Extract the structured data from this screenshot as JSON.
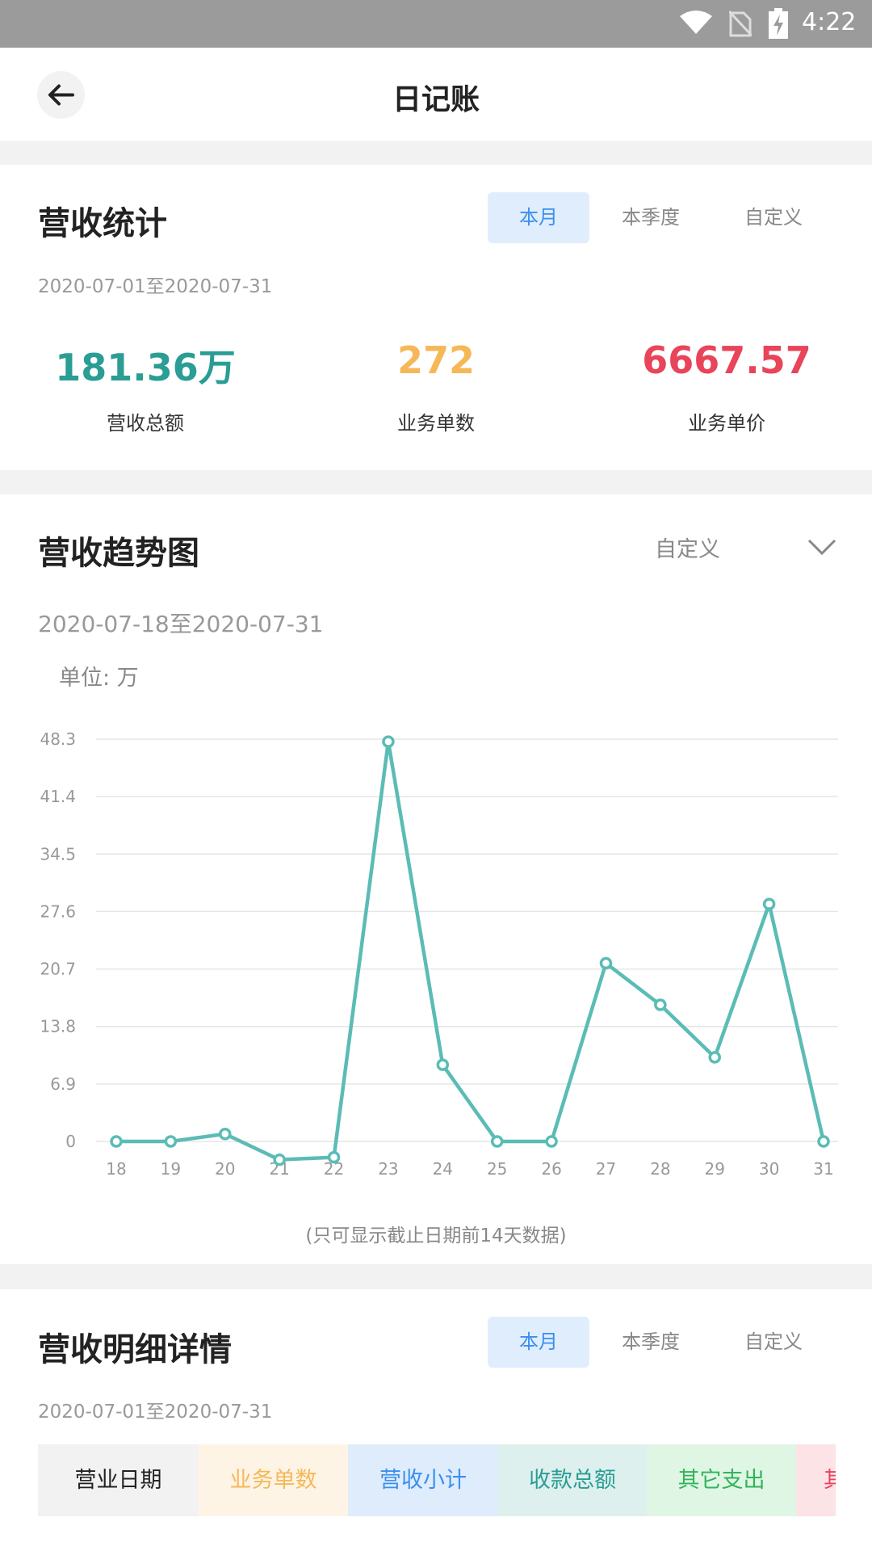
{
  "status_bar": {
    "time": "4:22",
    "icons": [
      "wifi-icon",
      "no-sim-icon",
      "battery-charging-icon"
    ]
  },
  "header": {
    "title": "日记账",
    "back_icon": "arrow-left-icon"
  },
  "revenue_stats": {
    "title": "营收统计",
    "tabs": [
      {
        "label": "本月",
        "active": true
      },
      {
        "label": "本季度",
        "active": false
      },
      {
        "label": "自定义",
        "active": false
      }
    ],
    "date_range": "2020-07-01至2020-07-31",
    "metrics": [
      {
        "value": "181.36万",
        "label": "营收总额",
        "color": "#2a9d94"
      },
      {
        "value": "272",
        "label": "业务单数",
        "color": "#f5b857"
      },
      {
        "value": "6667.57",
        "label": "业务单价",
        "color": "#e8445a"
      }
    ]
  },
  "trend": {
    "title": "营收趋势图",
    "dropdown_label": "自定义",
    "date_range": "2020-07-18至2020-07-31",
    "unit": "单位: 万",
    "note": "(只可显示截止日期前14天数据)"
  },
  "chart_data": {
    "type": "line",
    "categories": [
      "18",
      "19",
      "20",
      "21",
      "22",
      "23",
      "24",
      "25",
      "26",
      "27",
      "28",
      "29",
      "30",
      "31"
    ],
    "values": [
      0,
      0,
      0.9,
      -2.2,
      -1.9,
      48.0,
      9.2,
      0,
      0,
      21.4,
      16.4,
      10.1,
      28.5,
      0
    ],
    "y_ticks": [
      "0",
      "6.9",
      "13.8",
      "20.7",
      "27.6",
      "34.5",
      "41.4",
      "48.3"
    ],
    "ylim": [
      0,
      48.3
    ],
    "grid": true,
    "color": "#5bbcb6"
  },
  "details": {
    "title": "营收明细详情",
    "tabs": [
      {
        "label": "本月",
        "active": true
      },
      {
        "label": "本季度",
        "active": false
      },
      {
        "label": "自定义",
        "active": false
      }
    ],
    "date_range": "2020-07-01至2020-07-31",
    "columns": [
      {
        "label": "营业日期",
        "color": "#222222",
        "bg": "#f2f2f2"
      },
      {
        "label": "业务单数",
        "color": "#f5b857",
        "bg": "#fef4e6"
      },
      {
        "label": "营收小计",
        "color": "#3b8ff0",
        "bg": "#deecfc"
      },
      {
        "label": "收款总额",
        "color": "#2a9d94",
        "bg": "#ddf0ee"
      },
      {
        "label": "其它支出",
        "color": "#33b35a",
        "bg": "#dff6e5"
      },
      {
        "label": "其",
        "color": "#e8445a",
        "bg": "#fbe3e6"
      }
    ]
  }
}
